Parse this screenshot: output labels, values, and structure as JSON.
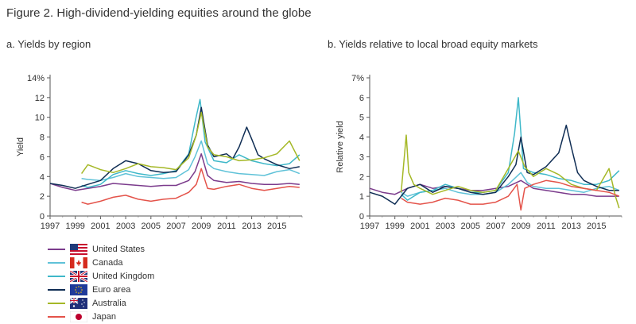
{
  "figure_title": "Figure 2. High-dividend-yielding equities around the globe",
  "chart_data": [
    {
      "type": "line",
      "title": "a. Yields by region",
      "ylabel": "Yield",
      "xlabel": "",
      "xlim": [
        1997,
        2017
      ],
      "ylim": [
        0,
        14
      ],
      "x_ticks": [
        "1997",
        "1999",
        "2001",
        "2003",
        "2005",
        "2007",
        "2009",
        "2011",
        "2013",
        "2015"
      ],
      "y_ticks": [
        "0",
        "2",
        "4",
        "6",
        "8",
        "10",
        "12",
        "14%"
      ],
      "series": [
        {
          "name": "United States",
          "color": "#7b3b8c",
          "x": [
            1997,
            1998,
            1999,
            2000,
            2001,
            2002,
            2003,
            2004,
            2005,
            2006,
            2007,
            2008,
            2008.5,
            2009,
            2009.5,
            2010,
            2011,
            2012,
            2013,
            2014,
            2015,
            2016,
            2016.8
          ],
          "y": [
            3.3,
            2.9,
            2.6,
            2.8,
            3.0,
            3.3,
            3.2,
            3.1,
            3.0,
            3.1,
            3.1,
            3.6,
            4.5,
            6.3,
            4.1,
            3.6,
            3.4,
            3.5,
            3.3,
            3.2,
            3.2,
            3.3,
            3.2
          ]
        },
        {
          "name": "Canada",
          "color": "#5fc2d8",
          "x": [
            1999.5,
            2000,
            2001,
            2002,
            2003,
            2004,
            2005,
            2006,
            2007,
            2008,
            2008.5,
            2009,
            2009.5,
            2010,
            2011,
            2012,
            2013,
            2014,
            2015,
            2016,
            2016.8
          ],
          "y": [
            3.8,
            3.7,
            3.6,
            3.9,
            4.3,
            4.0,
            3.9,
            3.8,
            3.9,
            4.7,
            6.0,
            7.6,
            5.3,
            4.8,
            4.5,
            4.3,
            4.2,
            4.1,
            4.5,
            4.7,
            4.3
          ]
        },
        {
          "name": "United Kingdom",
          "color": "#3fb8c9",
          "x": [
            1999.5,
            2000,
            2001,
            2002,
            2003,
            2004,
            2005,
            2006,
            2007,
            2008,
            2008.5,
            2008.9,
            2009.3,
            2010,
            2011,
            2012,
            2013,
            2014,
            2015,
            2016,
            2016.8
          ],
          "y": [
            3.1,
            2.9,
            3.2,
            4.2,
            4.6,
            4.3,
            4.1,
            4.3,
            4.6,
            6.3,
            9.5,
            11.8,
            7.5,
            5.6,
            5.4,
            6.2,
            5.6,
            5.3,
            5.1,
            5.3,
            6.2
          ]
        },
        {
          "name": "Euro area",
          "color": "#0f2d54",
          "x": [
            1997,
            1998,
            1999,
            2000,
            2001,
            2002,
            2003,
            2004,
            2005,
            2006,
            2007,
            2008,
            2008.6,
            2009,
            2009.5,
            2010,
            2011,
            2011.5,
            2012,
            2012.6,
            2013,
            2013.5,
            2014,
            2015,
            2016,
            2016.8
          ],
          "y": [
            3.3,
            3.1,
            2.8,
            3.2,
            3.6,
            4.8,
            5.6,
            5.3,
            4.6,
            4.4,
            4.5,
            6.2,
            8.2,
            11.0,
            7.2,
            6.0,
            6.3,
            5.8,
            7.0,
            9.0,
            7.8,
            6.2,
            5.8,
            5.2,
            4.8,
            5.0
          ]
        },
        {
          "name": "Australia",
          "color": "#a5b827",
          "x": [
            1999.5,
            2000,
            2001,
            2002,
            2003,
            2004,
            2005,
            2006,
            2007,
            2008,
            2008.6,
            2009,
            2009.5,
            2010,
            2011,
            2012,
            2013,
            2014,
            2015,
            2016,
            2016.8
          ],
          "y": [
            4.3,
            5.2,
            4.7,
            4.4,
            4.8,
            5.3,
            5.0,
            4.9,
            4.7,
            5.9,
            8.2,
            10.5,
            7.0,
            6.2,
            6.0,
            5.6,
            5.7,
            5.9,
            6.3,
            7.6,
            5.6
          ]
        },
        {
          "name": "Japan",
          "color": "#e4534a",
          "x": [
            1999.5,
            2000,
            2001,
            2002,
            2003,
            2004,
            2005,
            2006,
            2007,
            2008,
            2008.6,
            2009,
            2009.5,
            2010,
            2011,
            2012,
            2013,
            2014,
            2015,
            2016,
            2016.8
          ],
          "y": [
            1.4,
            1.2,
            1.5,
            1.9,
            2.1,
            1.7,
            1.5,
            1.7,
            1.8,
            2.4,
            3.2,
            4.8,
            2.8,
            2.7,
            3.0,
            3.2,
            2.8,
            2.6,
            2.8,
            3.0,
            2.9
          ]
        }
      ]
    },
    {
      "type": "line",
      "title": "b. Yields relative to local broad equity markets",
      "ylabel": "Relative yield",
      "xlabel": "",
      "xlim": [
        1997,
        2017
      ],
      "ylim": [
        0,
        7
      ],
      "x_ticks": [
        "1997",
        "1999",
        "2001",
        "2003",
        "2005",
        "2007",
        "2009",
        "2011",
        "2013",
        "2015"
      ],
      "y_ticks": [
        "0",
        "1",
        "2",
        "3",
        "4",
        "5",
        "6",
        "7%"
      ],
      "series": [
        {
          "name": "United States",
          "color": "#7b3b8c",
          "x": [
            1997,
            1998,
            1999,
            2000,
            2001,
            2002,
            2003,
            2004,
            2005,
            2006,
            2007,
            2008,
            2009,
            2009.5,
            2010,
            2011,
            2012,
            2013,
            2014,
            2015,
            2016,
            2016.8
          ],
          "y": [
            1.4,
            1.2,
            1.1,
            1.4,
            1.6,
            1.4,
            1.5,
            1.4,
            1.3,
            1.3,
            1.4,
            1.5,
            1.8,
            1.6,
            1.4,
            1.3,
            1.2,
            1.1,
            1.1,
            1.0,
            1.0,
            1.0
          ]
        },
        {
          "name": "Canada",
          "color": "#5fc2d8",
          "x": [
            1999.5,
            2000,
            2001,
            2002,
            2003,
            2004,
            2005,
            2006,
            2007,
            2008,
            2009,
            2009.5,
            2010,
            2011,
            2012,
            2013,
            2014,
            2015,
            2016,
            2016.8
          ],
          "y": [
            1.2,
            1.0,
            1.2,
            1.3,
            1.4,
            1.2,
            1.1,
            1.1,
            1.2,
            1.6,
            2.2,
            1.7,
            1.5,
            1.4,
            1.4,
            1.3,
            1.2,
            1.4,
            1.5,
            1.3
          ]
        },
        {
          "name": "United Kingdom",
          "color": "#3fb8c9",
          "x": [
            1999.5,
            2000,
            2001,
            2002,
            2003,
            2004,
            2005,
            2006,
            2007,
            2008,
            2008.5,
            2008.8,
            2009.2,
            2010,
            2011,
            2012,
            2013,
            2014,
            2015,
            2016,
            2016.8
          ],
          "y": [
            1.1,
            0.8,
            1.2,
            1.3,
            1.6,
            1.4,
            1.2,
            1.2,
            1.3,
            2.2,
            4.2,
            6.0,
            2.4,
            2.2,
            2.1,
            1.9,
            1.8,
            1.6,
            1.6,
            1.8,
            2.3
          ]
        },
        {
          "name": "Euro area",
          "color": "#0f2d54",
          "x": [
            1997,
            1998,
            1999,
            2000,
            2001,
            2002,
            2003,
            2004,
            2005,
            2006,
            2007,
            2008,
            2008.6,
            2009,
            2009.5,
            2010,
            2011,
            2012,
            2012.6,
            2013,
            2013.5,
            2014,
            2015,
            2016,
            2016.8
          ],
          "y": [
            1.2,
            1.0,
            0.6,
            1.4,
            1.6,
            1.2,
            1.5,
            1.4,
            1.2,
            1.1,
            1.2,
            2.0,
            2.6,
            4.0,
            2.2,
            2.1,
            2.5,
            3.2,
            4.6,
            3.5,
            2.2,
            1.8,
            1.5,
            1.3,
            1.3
          ]
        },
        {
          "name": "Australia",
          "color": "#a5b827",
          "x": [
            1999.5,
            1999.9,
            2000.1,
            2000.5,
            2001,
            2002,
            2003,
            2004,
            2005,
            2006,
            2007,
            2008,
            2008.8,
            2009.3,
            2010,
            2011,
            2012,
            2013,
            2014,
            2015,
            2016,
            2016.5,
            2016.8
          ],
          "y": [
            1.2,
            4.1,
            2.2,
            1.6,
            1.4,
            1.1,
            1.3,
            1.5,
            1.3,
            1.2,
            1.3,
            2.4,
            3.3,
            2.5,
            2.0,
            2.4,
            2.1,
            1.6,
            1.4,
            1.3,
            2.4,
            1.0,
            0.4
          ]
        },
        {
          "name": "Japan",
          "color": "#e4534a",
          "x": [
            1999.5,
            2000,
            2001,
            2002,
            2003,
            2004,
            2005,
            2006,
            2007,
            2008,
            2008.7,
            2009,
            2009.3,
            2010,
            2011,
            2012,
            2013,
            2014,
            2015,
            2016,
            2016.8
          ],
          "y": [
            0.9,
            0.7,
            0.6,
            0.7,
            0.9,
            0.8,
            0.6,
            0.6,
            0.7,
            1.0,
            1.6,
            0.3,
            1.4,
            1.6,
            1.8,
            1.7,
            1.5,
            1.4,
            1.3,
            1.2,
            1.0
          ]
        }
      ]
    }
  ],
  "legend": [
    {
      "label": "United States",
      "color": "#7b3b8c",
      "flag": "us-flag-icon"
    },
    {
      "label": "Canada",
      "color": "#5fc2d8",
      "flag": "canada-flag-icon"
    },
    {
      "label": "United Kingdom",
      "color": "#3fb8c9",
      "flag": "uk-flag-icon"
    },
    {
      "label": "Euro area",
      "color": "#0f2d54",
      "flag": "eu-flag-icon"
    },
    {
      "label": "Australia",
      "color": "#a5b827",
      "flag": "australia-flag-icon"
    },
    {
      "label": "Japan",
      "color": "#e4534a",
      "flag": "japan-flag-icon"
    }
  ]
}
